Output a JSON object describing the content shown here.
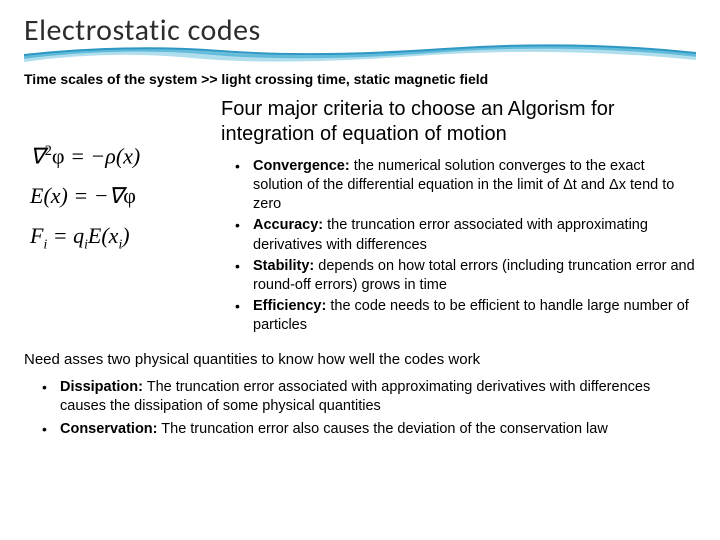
{
  "colors": {
    "background": "#ffffff",
    "title_text": "#2d2d2d",
    "body_text": "#000000",
    "wave_outer": "#9ed6e8",
    "wave_mid": "#59b7d7",
    "wave_inner": "#2e97c3"
  },
  "typography": {
    "title_fontsize": 30,
    "subtitle_fontsize": 14,
    "criteria_heading_fontsize": 20,
    "body_fontsize": 14.5,
    "equation_fontsize": 22
  },
  "title": "Electrostatic codes",
  "subtitle": "Time scales of the system >> light crossing time, static magnetic field",
  "equations": {
    "eq1_html": "∇<sup>2</sup><span class='upright'>φ</span> = −ρ(x)",
    "eq2_html": "E(x) = −∇<span class='upright'>φ</span>",
    "eq3_html": "F<sub>i</sub> = q<sub>i</sub>E(x<sub>i</sub>)"
  },
  "criteria_heading": "Four major criteria to choose an Algorism for integration of equation of motion",
  "criteria": [
    {
      "label": "Convergence:",
      "text": " the numerical solution converges to the exact solution of the differential equation in the limit of Δt and Δx tend to zero"
    },
    {
      "label": "Accuracy:",
      "text": " the truncation error associated with approximating derivatives with differences"
    },
    {
      "label": "Stability:",
      "text": " depends on how total errors (including truncation error and round-off errors) grows in time"
    },
    {
      "label": "Efficiency:",
      "text": " the code needs to be efficient to handle large number of particles"
    }
  ],
  "need_line": "Need asses two physical quantities to know how well the codes work",
  "physical": [
    {
      "label": "Dissipation:",
      "text": " The truncation error associated with approximating derivatives with differences causes the dissipation of some physical quantities"
    },
    {
      "label": "Conservation:",
      "text": " The truncation error also causes the deviation of the conservation law"
    }
  ]
}
